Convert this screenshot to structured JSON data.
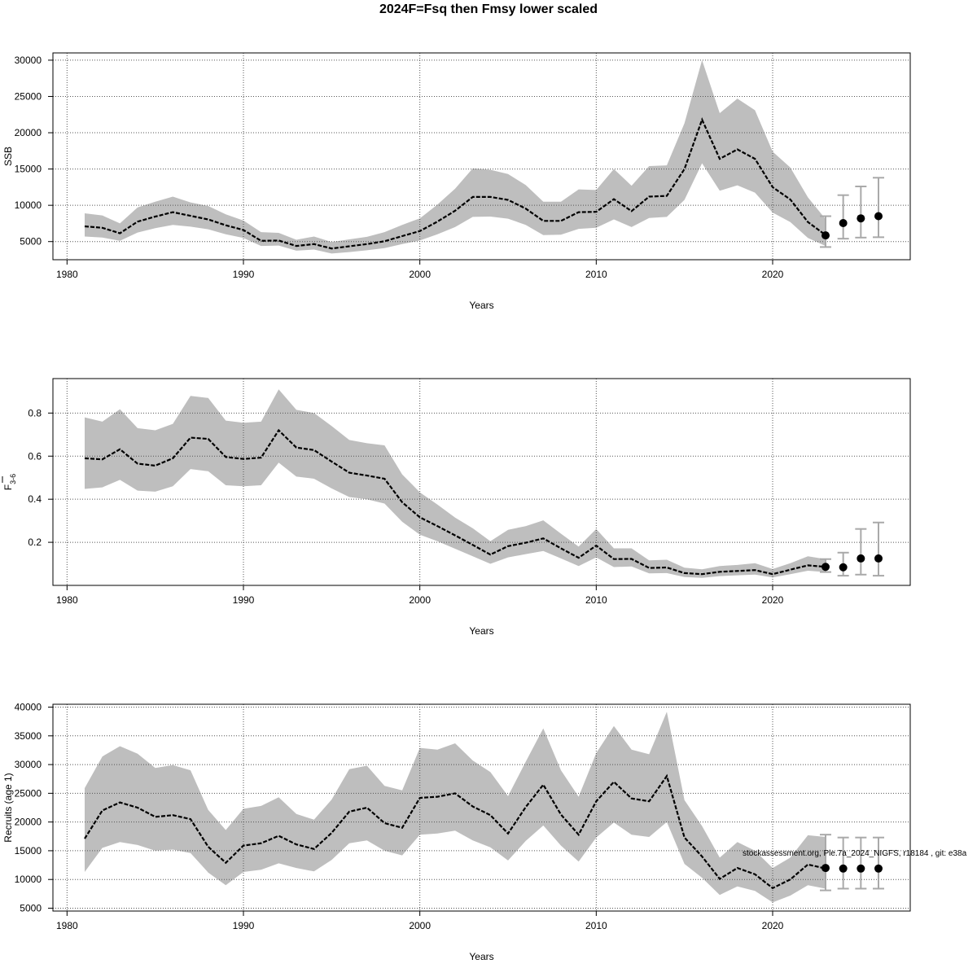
{
  "title": "2024F=Fsq then Fmsy lower scaled",
  "footnote": "stockassessment.org, Ple.7a_2024_NIGFS, r18184 , git: e38a",
  "colors": {
    "band": "#bebebe",
    "line": "#000000",
    "grid": "#555555",
    "errorbar": "#a9a9a9",
    "point": "#000000"
  },
  "chart_data": [
    {
      "type": "line",
      "name": "ssb",
      "ylabel": "SSB",
      "ylabel_sub": "",
      "xlabel": "Years",
      "xlim": [
        1979.2,
        2027.8
      ],
      "ylim": [
        2500,
        31000
      ],
      "xticks": [
        1980,
        1990,
        2000,
        2010,
        2020
      ],
      "yticks": [
        5000,
        10000,
        15000,
        20000,
        25000,
        30000
      ],
      "grid": true,
      "x": [
        1981,
        1982,
        1983,
        1984,
        1985,
        1986,
        1987,
        1988,
        1989,
        1990,
        1991,
        1992,
        1993,
        1994,
        1995,
        1996,
        1997,
        1998,
        1999,
        2000,
        2001,
        2002,
        2003,
        2004,
        2005,
        2006,
        2007,
        2008,
        2009,
        2010,
        2011,
        2012,
        2013,
        2014,
        2015,
        2016,
        2017,
        2018,
        2019,
        2020,
        2021,
        2022,
        2023
      ],
      "estimate": [
        7100,
        6900,
        6150,
        7750,
        8450,
        9050,
        8550,
        8050,
        7250,
        6600,
        5100,
        5150,
        4400,
        4650,
        4050,
        4350,
        4650,
        5050,
        5750,
        6450,
        7750,
        9250,
        11150,
        11150,
        10750,
        9550,
        7850,
        7850,
        9050,
        9100,
        10850,
        9200,
        11200,
        11300,
        15000,
        21800,
        16400,
        17700,
        16400,
        12500,
        10800,
        7700,
        5900
      ],
      "lower": [
        5700,
        5550,
        5100,
        6250,
        6850,
        7300,
        7050,
        6700,
        6000,
        5500,
        4400,
        4450,
        3750,
        3900,
        3350,
        3550,
        3800,
        4100,
        4650,
        5150,
        6000,
        7000,
        8400,
        8450,
        8150,
        7300,
        5900,
        5950,
        6750,
        6900,
        8050,
        7000,
        8250,
        8400,
        10750,
        15800,
        12000,
        12750,
        11750,
        9000,
        7700,
        5500,
        4400
      ],
      "upper": [
        8900,
        8600,
        7500,
        9700,
        10500,
        11200,
        10400,
        9900,
        8750,
        7900,
        6300,
        6200,
        5250,
        5700,
        4950,
        5300,
        5650,
        6300,
        7300,
        8200,
        10100,
        12300,
        15100,
        14900,
        14300,
        12800,
        10500,
        10500,
        12200,
        12100,
        15000,
        12700,
        15400,
        15500,
        21300,
        30000,
        22700,
        24700,
        23100,
        17400,
        15200,
        11100,
        8100
      ],
      "forecast": {
        "x": [
          2023,
          2024,
          2025,
          2026
        ],
        "median": [
          5850,
          7550,
          8200,
          8500
        ],
        "low": [
          4250,
          5400,
          5550,
          5600
        ],
        "high": [
          8500,
          11400,
          12600,
          13800
        ]
      }
    },
    {
      "type": "line",
      "name": "fbar",
      "ylabel": "F",
      "ylabel_sub": "3-6",
      "xlabel": "Years",
      "xlim": [
        1979.2,
        2027.8
      ],
      "ylim": [
        0.0,
        0.96
      ],
      "xticks": [
        1980,
        1990,
        2000,
        2010,
        2020
      ],
      "yticks": [
        0.2,
        0.4,
        0.6,
        0.8
      ],
      "grid": true,
      "x": [
        1981,
        1982,
        1983,
        1984,
        1985,
        1986,
        1987,
        1988,
        1989,
        1990,
        1991,
        1992,
        1993,
        1994,
        1995,
        1996,
        1997,
        1998,
        1999,
        2000,
        2001,
        2002,
        2003,
        2004,
        2005,
        2006,
        2007,
        2008,
        2009,
        2010,
        2011,
        2012,
        2013,
        2014,
        2015,
        2016,
        2017,
        2018,
        2019,
        2020,
        2021,
        2022,
        2023
      ],
      "estimate": [
        0.59,
        0.585,
        0.632,
        0.565,
        0.556,
        0.59,
        0.686,
        0.68,
        0.596,
        0.587,
        0.593,
        0.72,
        0.64,
        0.628,
        0.575,
        0.523,
        0.51,
        0.495,
        0.386,
        0.316,
        0.275,
        0.232,
        0.188,
        0.143,
        0.182,
        0.198,
        0.218,
        0.172,
        0.128,
        0.185,
        0.122,
        0.123,
        0.081,
        0.083,
        0.057,
        0.052,
        0.063,
        0.067,
        0.071,
        0.052,
        0.073,
        0.093,
        0.086
      ],
      "lower": [
        0.448,
        0.455,
        0.49,
        0.44,
        0.435,
        0.46,
        0.54,
        0.53,
        0.465,
        0.46,
        0.465,
        0.57,
        0.505,
        0.495,
        0.45,
        0.41,
        0.4,
        0.38,
        0.295,
        0.235,
        0.205,
        0.17,
        0.135,
        0.1,
        0.13,
        0.145,
        0.16,
        0.125,
        0.09,
        0.13,
        0.085,
        0.088,
        0.056,
        0.057,
        0.039,
        0.035,
        0.043,
        0.047,
        0.05,
        0.037,
        0.052,
        0.068,
        0.062
      ],
      "upper": [
        0.78,
        0.76,
        0.818,
        0.73,
        0.72,
        0.75,
        0.88,
        0.87,
        0.765,
        0.755,
        0.76,
        0.91,
        0.815,
        0.8,
        0.74,
        0.675,
        0.66,
        0.65,
        0.515,
        0.432,
        0.375,
        0.315,
        0.265,
        0.205,
        0.258,
        0.275,
        0.302,
        0.24,
        0.18,
        0.262,
        0.172,
        0.172,
        0.116,
        0.119,
        0.082,
        0.075,
        0.09,
        0.095,
        0.103,
        0.076,
        0.103,
        0.135,
        0.122
      ],
      "forecast": {
        "x": [
          2023,
          2024,
          2025,
          2026
        ],
        "median": [
          0.086,
          0.084,
          0.125,
          0.125
        ],
        "low": [
          0.062,
          0.045,
          0.05,
          0.045
        ],
        "high": [
          0.122,
          0.152,
          0.262,
          0.292
        ]
      }
    },
    {
      "type": "line",
      "name": "recruits",
      "ylabel": "Recruits (age 1)",
      "ylabel_sub": "",
      "xlabel": "Years",
      "xlim": [
        1979.2,
        2027.8
      ],
      "ylim": [
        4500,
        40500
      ],
      "xticks": [
        1980,
        1990,
        2000,
        2010,
        2020
      ],
      "yticks": [
        5000,
        10000,
        15000,
        20000,
        25000,
        30000,
        35000,
        40000
      ],
      "grid": true,
      "x": [
        1981,
        1982,
        1983,
        1984,
        1985,
        1986,
        1987,
        1988,
        1989,
        1990,
        1991,
        1992,
        1993,
        1994,
        1995,
        1996,
        1997,
        1998,
        1999,
        2000,
        2001,
        2002,
        2003,
        2004,
        2005,
        2006,
        2007,
        2008,
        2009,
        2010,
        2011,
        2012,
        2013,
        2014,
        2015,
        2016,
        2017,
        2018,
        2019,
        2020,
        2021,
        2022,
        2023
      ],
      "estimate": [
        17100,
        22000,
        23400,
        22500,
        20900,
        21200,
        20500,
        15700,
        12900,
        15900,
        16300,
        17600,
        16100,
        15300,
        18100,
        21800,
        22500,
        19800,
        19000,
        24200,
        24400,
        25000,
        22700,
        21200,
        18000,
        22600,
        26500,
        21300,
        17800,
        23600,
        27000,
        24100,
        23600,
        28000,
        17300,
        14000,
        10100,
        12000,
        10900,
        8500,
        10000,
        12600,
        11900
      ],
      "lower": [
        11300,
        15500,
        16500,
        16000,
        15000,
        15200,
        14600,
        11200,
        9000,
        11300,
        11700,
        12800,
        12000,
        11400,
        13400,
        16300,
        16800,
        15000,
        14200,
        17800,
        18000,
        18500,
        16800,
        15600,
        13300,
        16700,
        19400,
        15900,
        13100,
        17300,
        19900,
        17800,
        17400,
        20000,
        12700,
        10300,
        7300,
        8800,
        8000,
        6000,
        7200,
        9000,
        8400
      ],
      "upper": [
        25900,
        31400,
        33200,
        31900,
        29400,
        29900,
        29000,
        22100,
        18600,
        22300,
        22800,
        24300,
        21400,
        20400,
        23900,
        29200,
        29800,
        26300,
        25500,
        32900,
        32600,
        33700,
        30700,
        28700,
        24500,
        30500,
        36300,
        29000,
        24400,
        32000,
        36700,
        32600,
        31800,
        39200,
        23800,
        19300,
        13800,
        16500,
        15000,
        12000,
        13800,
        17700,
        17400
      ],
      "forecast": {
        "x": [
          2023,
          2024,
          2025,
          2026
        ],
        "median": [
          12000,
          11900,
          11900,
          11900
        ],
        "low": [
          8100,
          8400,
          8400,
          8400
        ],
        "high": [
          17800,
          17300,
          17300,
          17300
        ]
      }
    }
  ]
}
